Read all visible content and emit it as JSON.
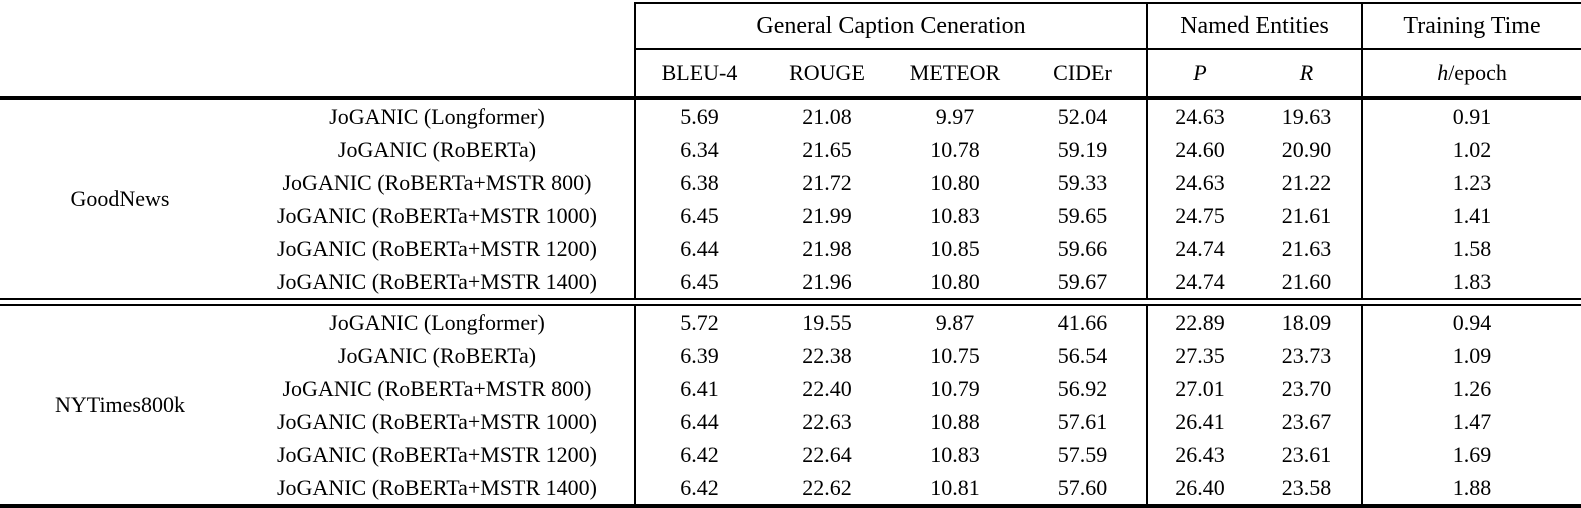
{
  "colors": {
    "text": "#000000",
    "background": "#ffffff",
    "rule": "#000000"
  },
  "table": {
    "groups": [
      {
        "label": "General Caption Ceneration",
        "span": 4
      },
      {
        "label": "Named Entities",
        "span": 2
      },
      {
        "label": "Training Time",
        "span": 1
      }
    ],
    "columns": [
      {
        "plain": "BLEU-4"
      },
      {
        "plain": "ROUGE"
      },
      {
        "plain": "METEOR"
      },
      {
        "plain": "CIDEr"
      },
      {
        "italic": "P"
      },
      {
        "italic": "R"
      },
      {
        "italic": "h",
        "plain": "/epoch"
      }
    ],
    "sections": [
      {
        "dataset": "GoodNews",
        "rows": [
          {
            "model": "JoGANIC (Longformer)",
            "values": [
              "5.69",
              "21.08",
              "9.97",
              "52.04",
              "24.63",
              "19.63",
              "0.91"
            ],
            "bold": [
              0,
              0,
              0,
              0,
              0,
              0,
              1
            ]
          },
          {
            "model": "JoGANIC (RoBERTa)",
            "values": [
              "6.34",
              "21.65",
              "10.78",
              "59.19",
              "24.60",
              "20.90",
              "1.02"
            ],
            "bold": [
              0,
              0,
              0,
              0,
              0,
              0,
              0
            ]
          },
          {
            "model": "JoGANIC (RoBERTa+MSTR 800)",
            "values": [
              "6.38",
              "21.72",
              "10.80",
              "59.33",
              "24.63",
              "21.22",
              "1.23"
            ],
            "bold": [
              0,
              0,
              0,
              0,
              0,
              0,
              0
            ]
          },
          {
            "model": "JoGANIC (RoBERTa+MSTR 1000)",
            "values": [
              "6.45",
              "21.99",
              "10.83",
              "59.65",
              "24.75",
              "21.61",
              "1.41"
            ],
            "bold": [
              1,
              1,
              0,
              0,
              1,
              0,
              0
            ]
          },
          {
            "model": "JoGANIC (RoBERTa+MSTR 1200)",
            "values": [
              "6.44",
              "21.98",
              "10.85",
              "59.66",
              "24.74",
              "21.63",
              "1.58"
            ],
            "bold": [
              0,
              0,
              1,
              0,
              0,
              1,
              0
            ]
          },
          {
            "model": "JoGANIC (RoBERTa+MSTR 1400)",
            "values": [
              "6.45",
              "21.96",
              "10.80",
              "59.67",
              "24.74",
              "21.60",
              "1.83"
            ],
            "bold": [
              0,
              0,
              0,
              1,
              0,
              0,
              0
            ]
          }
        ]
      },
      {
        "dataset": "NYTimes800k",
        "rows": [
          {
            "model": "JoGANIC (Longformer)",
            "values": [
              "5.72",
              "19.55",
              "9.87",
              "41.66",
              "22.89",
              "18.09",
              "0.94"
            ],
            "bold": [
              0,
              0,
              0,
              0,
              0,
              0,
              1
            ]
          },
          {
            "model": "JoGANIC (RoBERTa)",
            "values": [
              "6.39",
              "22.38",
              "10.75",
              "56.54",
              "27.35",
              "23.73",
              "1.09"
            ],
            "bold": [
              0,
              0,
              0,
              0,
              1,
              1,
              0
            ]
          },
          {
            "model": "JoGANIC (RoBERTa+MSTR 800)",
            "values": [
              "6.41",
              "22.40",
              "10.79",
              "56.92",
              "27.01",
              "23.70",
              "1.26"
            ],
            "bold": [
              0,
              0,
              0,
              0,
              0,
              0,
              0
            ]
          },
          {
            "model": "JoGANIC (RoBERTa+MSTR 1000)",
            "values": [
              "6.44",
              "22.63",
              "10.88",
              "57.61",
              "26.41",
              "23.67",
              "1.47"
            ],
            "bold": [
              1,
              0,
              1,
              1,
              0,
              0,
              0
            ]
          },
          {
            "model": "JoGANIC (RoBERTa+MSTR 1200)",
            "values": [
              "6.42",
              "22.64",
              "10.83",
              "57.59",
              "26.43",
              "23.61",
              "1.69"
            ],
            "bold": [
              0,
              1,
              0,
              0,
              0,
              0,
              0
            ]
          },
          {
            "model": "JoGANIC (RoBERTa+MSTR 1400)",
            "values": [
              "6.42",
              "22.62",
              "10.81",
              "57.60",
              "26.40",
              "23.58",
              "1.88"
            ],
            "bold": [
              0,
              0,
              0,
              0,
              0,
              0,
              0
            ]
          }
        ]
      }
    ]
  }
}
